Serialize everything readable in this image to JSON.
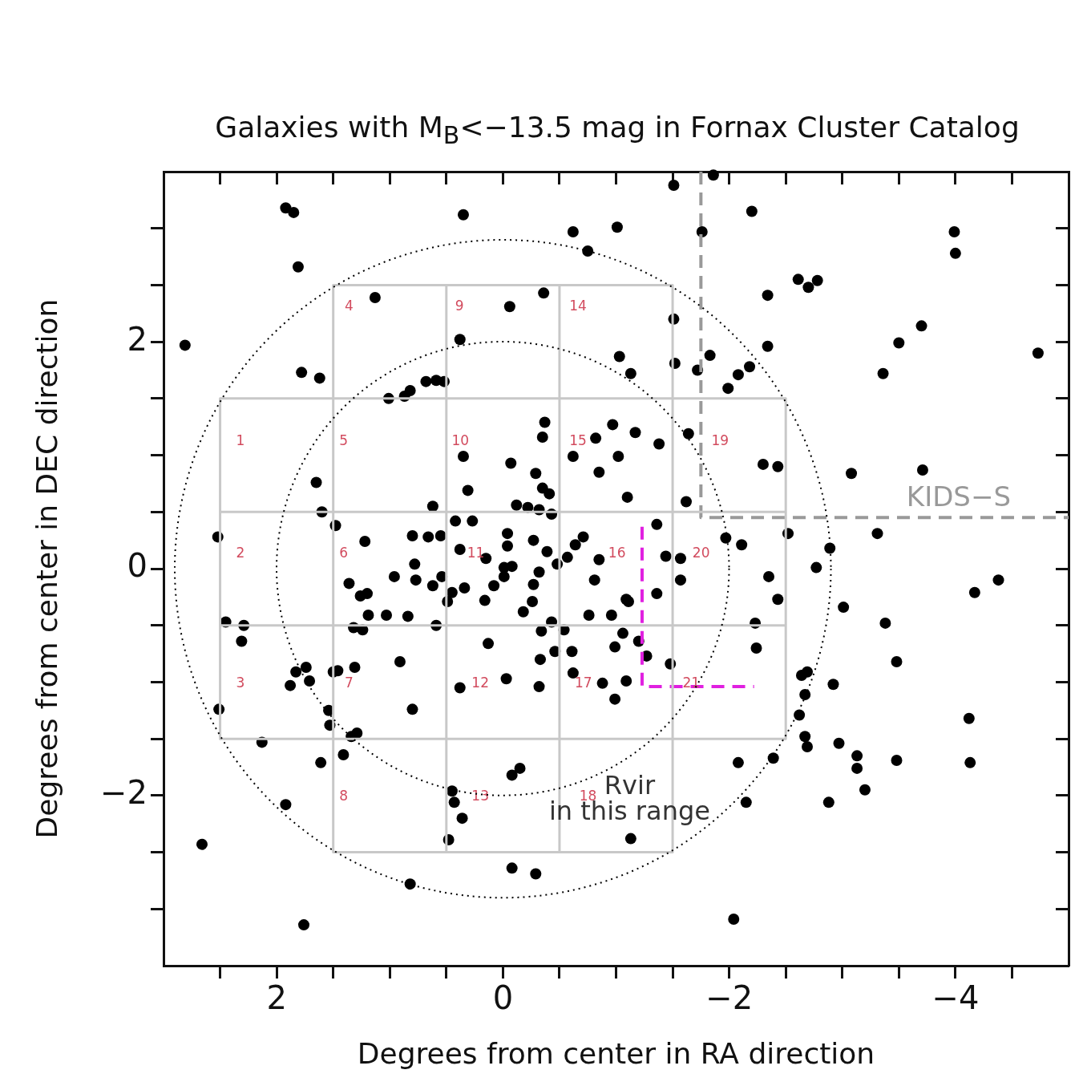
{
  "chart_data": {
    "type": "scatter",
    "title": "Galaxies with M$_{B}$<−13.5 mag in Fornax Cluster Catalog",
    "xlabel": "Degrees from center in RA direction",
    "ylabel": "Degrees from center in DEC direction",
    "legend": false,
    "xlim": [
      3,
      -5
    ],
    "ylim": [
      -3.5,
      3.5
    ],
    "xticks": [
      {
        "value": 2.5,
        "label": null
      },
      2,
      {
        "value": 1.5,
        "label": null
      },
      {
        "value": 1,
        "label": null
      },
      {
        "value": 0.5,
        "label": null
      },
      0,
      {
        "value": -0.5,
        "label": null
      },
      {
        "value": -1,
        "label": null
      },
      {
        "value": -1.5,
        "label": null
      },
      {
        "value": -2,
        "label": "−2"
      },
      {
        "value": -2.5,
        "label": null
      },
      {
        "value": -3,
        "label": null
      },
      {
        "value": -3.5,
        "label": null
      },
      {
        "value": -4,
        "label": "−4"
      },
      {
        "value": -4.5,
        "label": null
      }
    ],
    "yticks": [
      {
        "value": -3,
        "label": null
      },
      {
        "value": -2.5,
        "label": null
      },
      {
        "value": -2,
        "label": "−2"
      },
      {
        "value": -1.5,
        "label": null
      },
      {
        "value": -1,
        "label": null
      },
      {
        "value": -0.5,
        "label": null
      },
      0,
      {
        "value": 0.5,
        "label": null
      },
      {
        "value": 1,
        "label": null
      },
      {
        "value": 1.5,
        "label": null
      },
      2,
      {
        "value": 2.5,
        "label": null
      },
      {
        "value": 3,
        "label": null
      }
    ],
    "series": [
      {
        "type": "line",
        "color": "#c8c8c8",
        "line_style": "solid",
        "marker": "none",
        "x": [
          1.5,
          -1.5
        ],
        "values": [
          2.5,
          2.5
        ]
      },
      {
        "type": "line",
        "color": "#c8c8c8",
        "line_style": "solid",
        "marker": "none",
        "x": [
          2.5,
          -2.5
        ],
        "values": [
          1.5,
          1.5
        ]
      },
      {
        "type": "line",
        "color": "#c8c8c8",
        "line_style": "solid",
        "marker": "none",
        "x": [
          2.5,
          -2.5
        ],
        "values": [
          0.5,
          0.5
        ]
      },
      {
        "type": "line",
        "color": "#c8c8c8",
        "line_style": "solid",
        "marker": "none",
        "x": [
          2.5,
          -2.5
        ],
        "values": [
          -0.5,
          -0.5
        ]
      },
      {
        "type": "line",
        "color": "#c8c8c8",
        "line_style": "solid",
        "marker": "none",
        "x": [
          2.5,
          -2.5
        ],
        "values": [
          -1.5,
          -1.5
        ]
      },
      {
        "type": "line",
        "color": "#c8c8c8",
        "line_style": "solid",
        "marker": "none",
        "x": [
          1.5,
          -1.5
        ],
        "values": [
          -2.5,
          -2.5
        ]
      },
      {
        "type": "line",
        "color": "#c8c8c8",
        "line_style": "solid",
        "marker": "none",
        "x": [
          2.5,
          2.5
        ],
        "values": [
          1.5,
          -1.5
        ]
      },
      {
        "type": "line",
        "color": "#c8c8c8",
        "line_style": "solid",
        "marker": "none",
        "x": [
          1.5,
          1.5
        ],
        "values": [
          2.5,
          -2.5
        ]
      },
      {
        "type": "line",
        "color": "#c8c8c8",
        "line_style": "solid",
        "marker": "none",
        "x": [
          0.5,
          0.5
        ],
        "values": [
          2.5,
          -2.5
        ]
      },
      {
        "type": "line",
        "color": "#c8c8c8",
        "line_style": "solid",
        "marker": "none",
        "x": [
          -0.5,
          -0.5
        ],
        "values": [
          2.5,
          -2.5
        ]
      },
      {
        "type": "line",
        "color": "#c8c8c8",
        "line_style": "solid",
        "marker": "none",
        "x": [
          -1.5,
          -1.5
        ],
        "values": [
          2.5,
          -2.5
        ]
      },
      {
        "type": "line",
        "color": "#c8c8c8",
        "line_style": "solid",
        "marker": "none",
        "x": [
          -2.5,
          -2.5
        ],
        "values": [
          1.5,
          -1.5
        ]
      },
      {
        "type": "line",
        "name": "KIDS−S",
        "color": "#999999",
        "line_style": "dashed",
        "marker": "none",
        "x": [
          -1.75,
          -1.75,
          -5
        ],
        "values": [
          3.5,
          0.45,
          0.45
        ]
      },
      {
        "type": "line",
        "color": "#e020e0",
        "line_style": "dashed",
        "marker": "none",
        "x": [
          -1.23,
          -1.23,
          -2.22
        ],
        "values": [
          0.37,
          -1.04,
          -1.04
        ]
      },
      {
        "type": "scatter",
        "color": "#000000",
        "marker": "circle",
        "x": [
          -1.86,
          -1.51,
          1.92,
          1.85,
          0.35,
          -2.2,
          -0.62,
          -1.01,
          -1.76,
          -3.99,
          -4.0,
          -0.75,
          1.81,
          1.13,
          -0.06,
          -0.36,
          -2.61,
          -2.7,
          -2.78,
          -2.34,
          -1.51,
          -3.7,
          0.38,
          2.81,
          -3.5,
          -4.73,
          -2.34,
          -1.03,
          -1.83,
          -1.52,
          -1.72,
          -1.13,
          1.78,
          1.62,
          -3.36,
          -2.18,
          -2.08,
          -1.99,
          1.01,
          0.87,
          0.82,
          0.68,
          0.59,
          0.52,
          -0.37,
          -0.35,
          -0.97,
          -1.17,
          -1.38,
          -1.64,
          -0.82,
          -0.62,
          -1.02,
          -0.85,
          0.35,
          -0.07,
          -3.08,
          -3.71,
          -2.3,
          -2.43,
          -0.29,
          -0.35,
          -0.41,
          0.31,
          1.65,
          -1.1,
          -1.62,
          -0.12,
          -0.22,
          -0.32,
          -0.43,
          0.62,
          1.6,
          1.48,
          -1.36,
          -1.97,
          -2.11,
          -2.52,
          -3.31,
          2.52,
          1.22,
          -0.04,
          0.42,
          0.27,
          0.8,
          0.66,
          0.55,
          0.38,
          0.15,
          -0.71,
          -0.64,
          -0.57,
          -0.48,
          -0.39,
          -0.27,
          -0.04,
          -0.85,
          -2.89,
          -2.77,
          -1.44,
          -1.57,
          -0.01,
          -0.08,
          -0.32,
          0.78,
          -4.38,
          -4.17,
          -1.57,
          -2.35,
          -2.43,
          0.16,
          0.08,
          -0.01,
          -0.18,
          -0.26,
          -0.27,
          -0.34,
          -0.33,
          -0.43,
          -0.46,
          -0.54,
          -0.61,
          -0.62,
          -0.81,
          -0.76,
          -0.96,
          -1.06,
          -0.99,
          -1.09,
          -1.11,
          -1.36,
          -1.2,
          -1.27,
          -1.48,
          -0.03,
          -0.32,
          -0.88,
          -1.09,
          -0.99,
          0.13,
          -2.23,
          -2.24,
          -2.08,
          -2.15,
          -2.39,
          -0.08,
          -0.15,
          -1.13,
          -0.08,
          -0.29,
          -2.04,
          1.36,
          1.26,
          1.2,
          0.96,
          0.77,
          0.62,
          0.54,
          0.45,
          0.49,
          0.34,
          1.19,
          1.03,
          0.84,
          0.59,
          1.32,
          1.24,
          2.45,
          2.29,
          2.31,
          0.91,
          1.83,
          1.74,
          1.88,
          1.71,
          1.5,
          1.46,
          1.31,
          0.38,
          2.51,
          0.8,
          1.54,
          1.53,
          1.34,
          1.29,
          2.13,
          1.41,
          1.61,
          1.92,
          0.45,
          0.43,
          0.36,
          0.48,
          2.66,
          0.82,
          1.76,
          -3.01,
          -3.38,
          -3.48,
          -2.64,
          -2.69,
          -2.92,
          -2.67,
          -2.62,
          -2.67,
          -2.69,
          -2.97,
          -3.13,
          -3.13,
          -3.2,
          -2.88,
          -3.48,
          -4.12,
          -4.13
        ],
        "values": [
          3.47,
          3.38,
          3.18,
          3.14,
          3.12,
          3.15,
          2.97,
          3.01,
          2.97,
          2.97,
          2.78,
          2.8,
          2.66,
          2.39,
          2.31,
          2.43,
          2.55,
          2.48,
          2.54,
          2.41,
          2.2,
          2.14,
          2.02,
          1.97,
          1.99,
          1.9,
          1.96,
          1.87,
          1.88,
          1.81,
          1.75,
          1.72,
          1.73,
          1.68,
          1.72,
          1.78,
          1.71,
          1.59,
          1.5,
          1.52,
          1.57,
          1.65,
          1.66,
          1.65,
          1.29,
          1.16,
          1.27,
          1.2,
          1.1,
          1.19,
          1.15,
          0.99,
          0.99,
          0.85,
          0.99,
          0.93,
          0.84,
          0.87,
          0.92,
          0.9,
          0.84,
          0.71,
          0.66,
          0.69,
          0.76,
          0.63,
          0.59,
          0.56,
          0.54,
          0.52,
          0.48,
          0.55,
          0.5,
          0.38,
          0.39,
          0.27,
          0.21,
          0.31,
          0.31,
          0.28,
          0.24,
          0.31,
          0.42,
          0.42,
          0.29,
          0.28,
          0.29,
          0.17,
          0.09,
          0.28,
          0.21,
          0.1,
          0.04,
          0.15,
          0.25,
          0.2,
          0.08,
          0.18,
          0.01,
          0.11,
          0.09,
          0.01,
          0.02,
          -0.03,
          0.04,
          -0.1,
          -0.21,
          -0.1,
          -0.07,
          -0.27,
          -0.28,
          -0.15,
          -0.07,
          -0.38,
          -0.29,
          -0.14,
          -0.55,
          -0.8,
          -0.47,
          -0.73,
          -0.54,
          -0.73,
          -0.92,
          -0.1,
          -0.41,
          -0.41,
          -0.57,
          -0.69,
          -0.27,
          -0.29,
          -0.22,
          -0.64,
          -0.77,
          -0.84,
          -0.97,
          -1.04,
          -1.01,
          -0.99,
          -1.15,
          -0.66,
          -0.48,
          -0.7,
          -1.71,
          -2.06,
          -1.67,
          -1.82,
          -1.76,
          -2.38,
          -2.64,
          -2.69,
          -3.09,
          -0.13,
          -0.24,
          -0.22,
          -0.07,
          -0.1,
          -0.15,
          -0.07,
          -0.21,
          -0.29,
          -0.17,
          -0.41,
          -0.41,
          -0.42,
          -0.5,
          -0.52,
          -0.54,
          -0.47,
          -0.5,
          -0.64,
          -0.82,
          -0.91,
          -0.87,
          -1.03,
          -0.99,
          -0.91,
          -0.9,
          -0.87,
          -1.05,
          -1.24,
          -1.24,
          -1.25,
          -1.38,
          -1.48,
          -1.45,
          -1.53,
          -1.64,
          -1.71,
          -2.08,
          -1.96,
          -2.06,
          -2.2,
          -2.39,
          -2.43,
          -2.78,
          -3.14,
          -0.34,
          -0.48,
          -0.82,
          -0.94,
          -0.91,
          -1.02,
          -1.11,
          -1.29,
          -1.48,
          -1.57,
          -1.54,
          -1.65,
          -1.76,
          -1.95,
          -2.06,
          -1.69,
          -1.32,
          -1.71
        ]
      }
    ],
    "annotations": [
      "1",
      "2",
      "3",
      "4",
      "5",
      "6",
      "7",
      "8",
      "9",
      "10",
      "11",
      "12",
      "13",
      "14",
      "15",
      "16",
      "17",
      "18",
      "19",
      "20",
      "21",
      "Rvir\nin this range"
    ]
  }
}
